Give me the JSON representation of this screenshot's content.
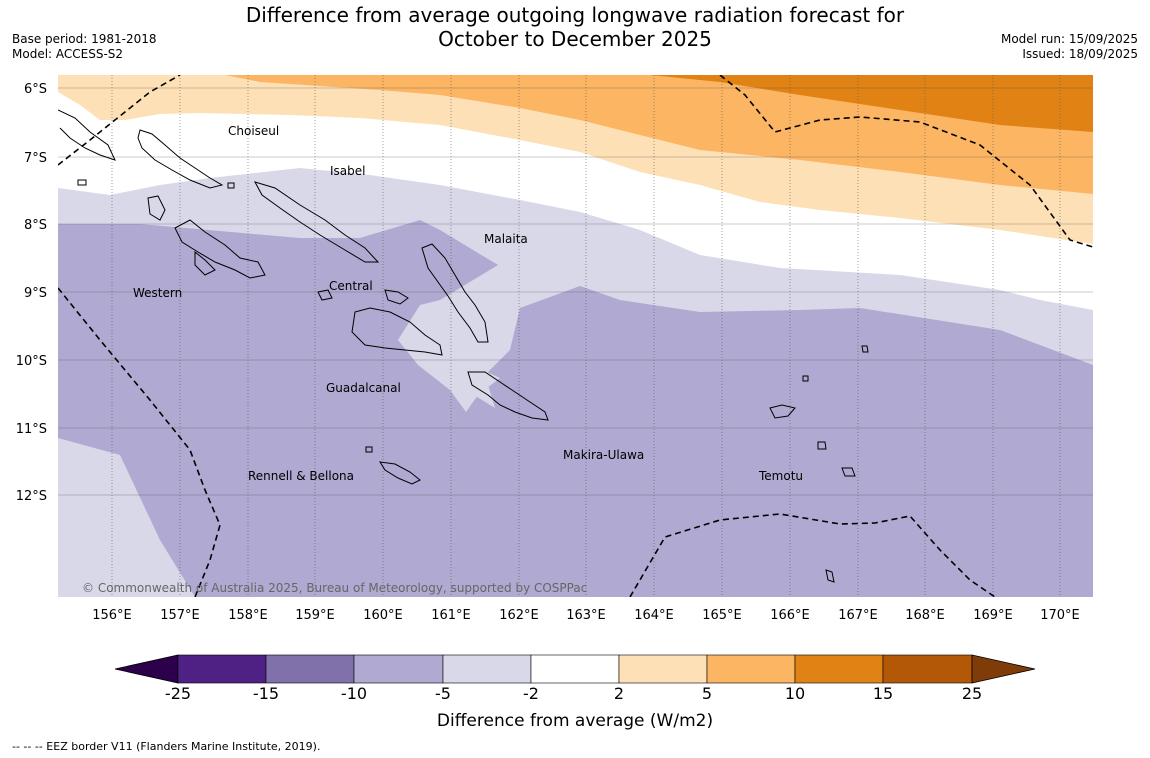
{
  "header": {
    "title_line1": "Difference from average outgoing longwave radiation forecast for",
    "title_line2": "October to December 2025",
    "base_period": "Base period: 1981-2018",
    "model": "Model: ACCESS-S2",
    "model_run": "Model run: 15/09/2025",
    "issued": "Issued: 18/09/2025"
  },
  "map": {
    "lat_labels": [
      "6°S",
      "7°S",
      "8°S",
      "9°S",
      "10°S",
      "11°S",
      "12°S"
    ],
    "lon_labels": [
      "156°E",
      "157°E",
      "158°E",
      "159°E",
      "160°E",
      "161°E",
      "162°E",
      "163°E",
      "164°E",
      "165°E",
      "166°E",
      "167°E",
      "168°E",
      "169°E",
      "170°E"
    ],
    "place_labels": {
      "choiseul": "Choiseul",
      "isabel": "Isabel",
      "malaita": "Malaita",
      "western": "Western",
      "central": "Central",
      "guadalcanal": "Guadalcanal",
      "makira": "Makira-Ulawa",
      "rennell": "Rennell & Bellona",
      "temotu": "Temotu"
    },
    "copyright": "© Commonwealth of Australia 2025, Bureau of Meteorology, supported by COSPPac"
  },
  "colorbar": {
    "ticks": [
      "-25",
      "-15",
      "-10",
      "-5",
      "-2",
      "2",
      "5",
      "10",
      "15",
      "25"
    ],
    "colors": [
      "#4f2185",
      "#8171ab",
      "#b0a9d1",
      "#d8d8e9",
      "#ffffff",
      "#fee0b6",
      "#fbb563",
      "#e08214",
      "#b35806"
    ],
    "extend_low_color": "#2d004b",
    "extend_high_color": "#7f3b08",
    "label": "Difference from average (W/m2)"
  },
  "footnote": "--  --  -- EEZ border V11 (Flanders Marine Institute, 2019)."
}
